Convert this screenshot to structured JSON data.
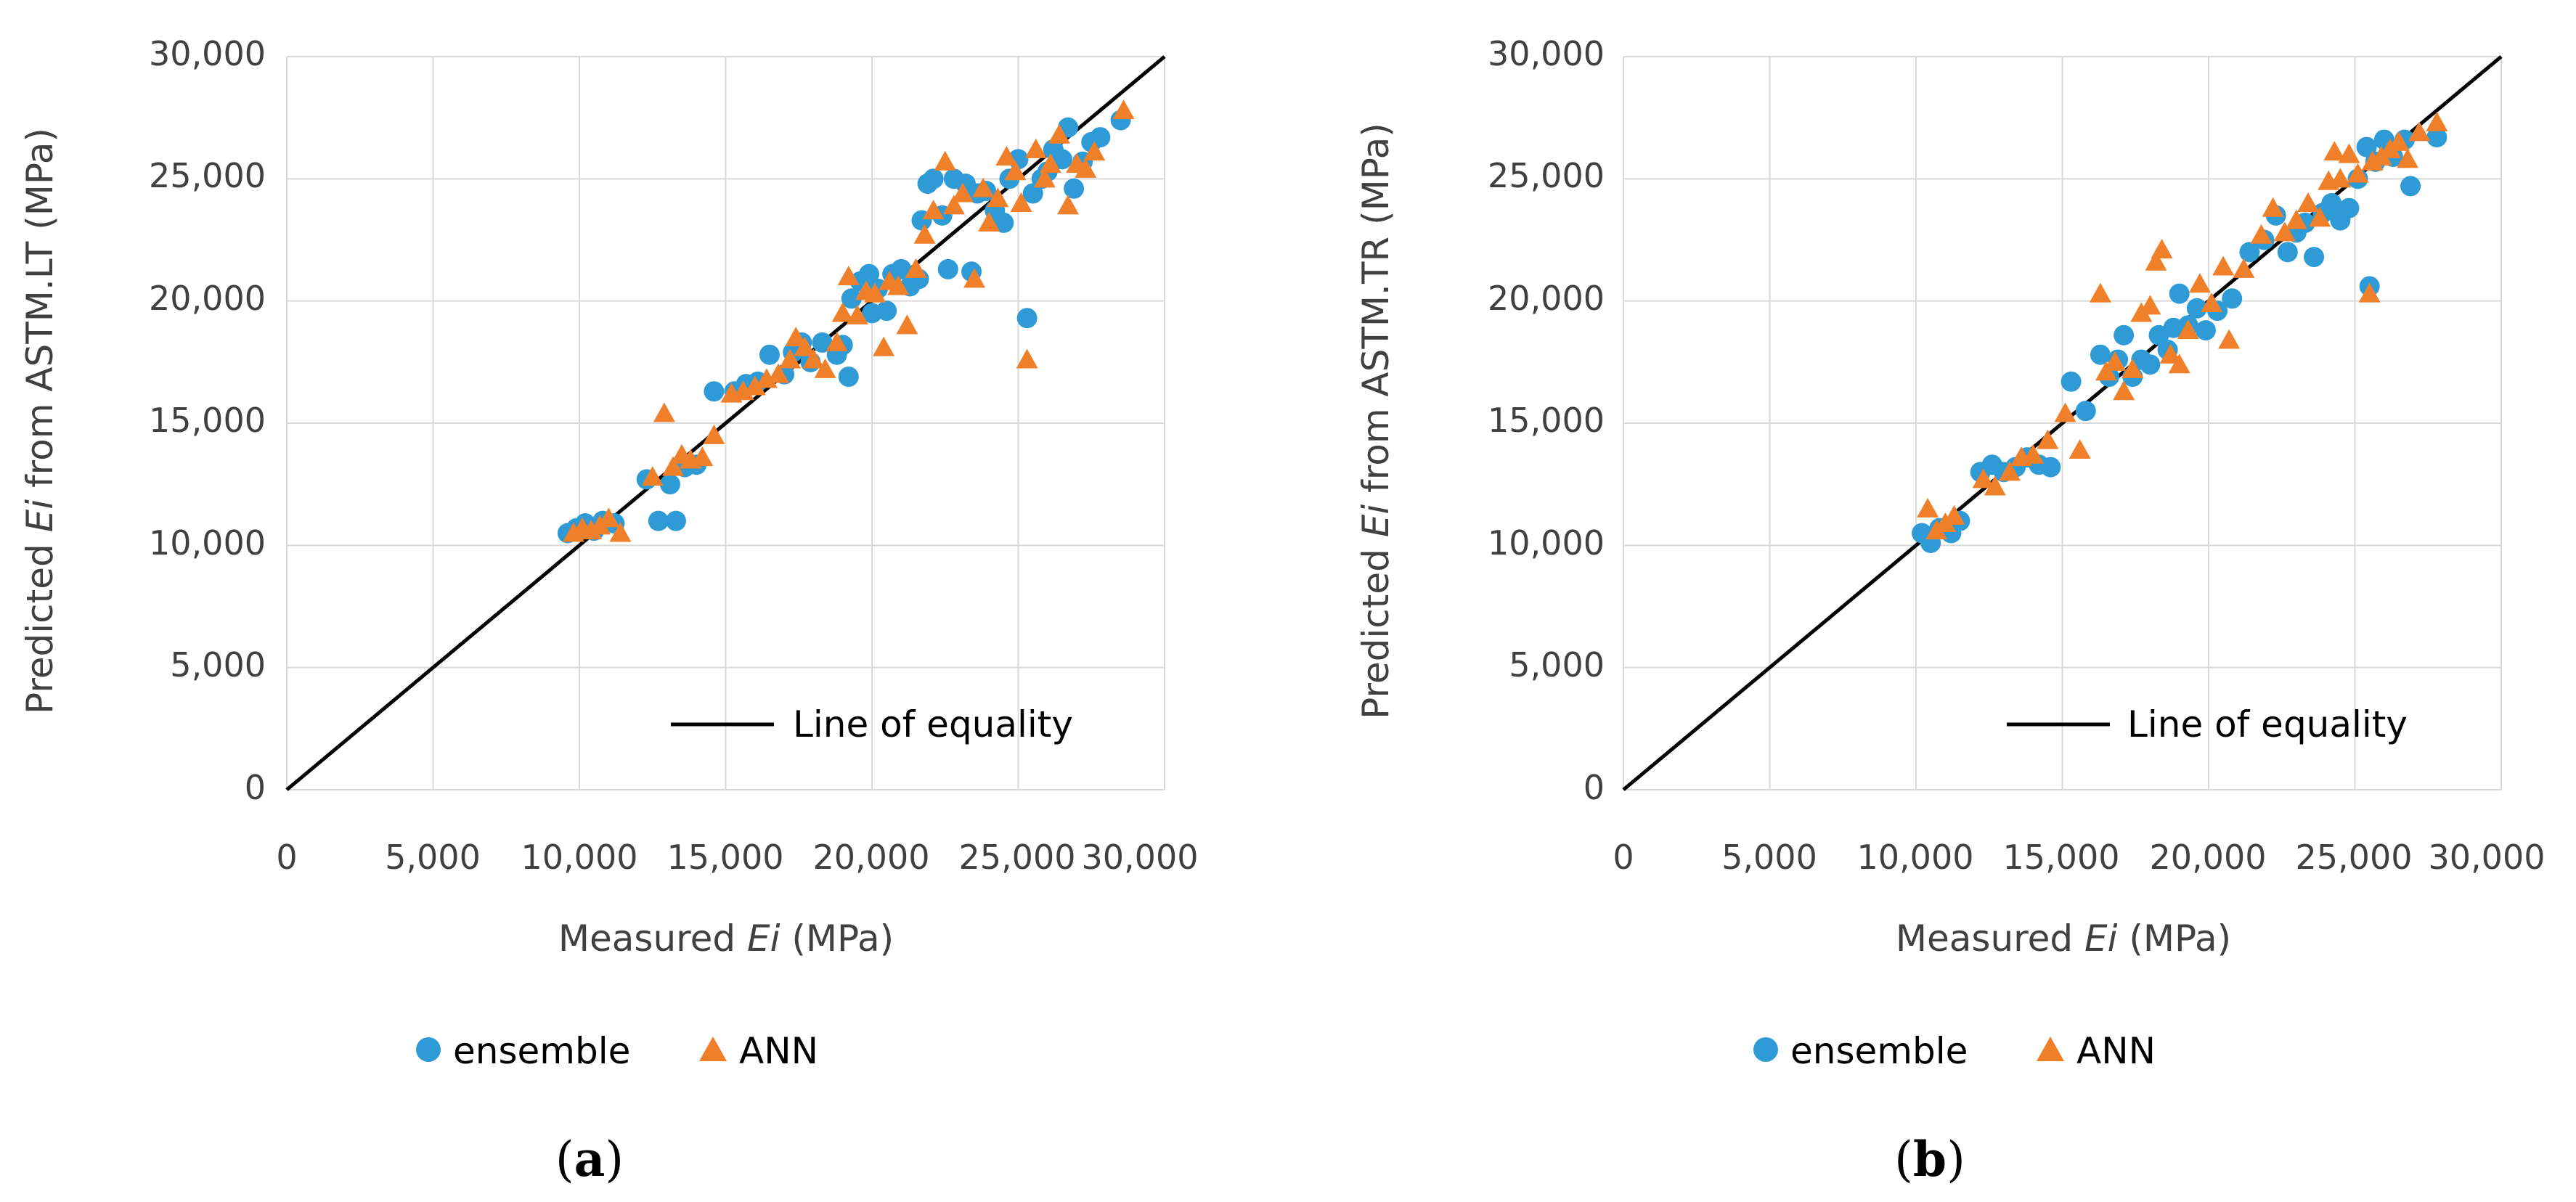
{
  "chart_data": [
    {
      "type": "scatter",
      "panel_label": {
        "open": "(",
        "letter": "a",
        "close": ")"
      },
      "xlabel": {
        "prefix": "Measured ",
        "italic": "Ei",
        "suffix": " (MPa)"
      },
      "ylabel": {
        "prefix": "Predicted ",
        "italic": "Ei",
        "suffix": " from ASTM.LT (MPa)"
      },
      "xlim": [
        0,
        30000
      ],
      "ylim": [
        0,
        30000
      ],
      "x_ticks": [
        "0",
        "5,000",
        "10,000",
        "15,000",
        "20,000",
        "25,000",
        "30,000"
      ],
      "y_ticks": [
        "0",
        "5,000",
        "10,000",
        "15,000",
        "20,000",
        "25,000",
        "30,000"
      ],
      "reference_line": {
        "name": "Line of equality",
        "from": [
          0,
          0
        ],
        "to": [
          30000,
          30000
        ]
      },
      "series": [
        {
          "name": "ensemble",
          "marker": "circle",
          "color": "#2E9BD6",
          "points": [
            [
              9600,
              10500
            ],
            [
              9900,
              10700
            ],
            [
              10200,
              10900
            ],
            [
              10500,
              10600
            ],
            [
              10800,
              11000
            ],
            [
              11200,
              10900
            ],
            [
              12300,
              12700
            ],
            [
              12700,
              11000
            ],
            [
              13100,
              12500
            ],
            [
              13300,
              11000
            ],
            [
              13600,
              13200
            ],
            [
              14000,
              13300
            ],
            [
              14600,
              16300
            ],
            [
              15300,
              16300
            ],
            [
              15700,
              16600
            ],
            [
              16100,
              16700
            ],
            [
              16500,
              17800
            ],
            [
              17000,
              17000
            ],
            [
              17300,
              17900
            ],
            [
              17600,
              18300
            ],
            [
              17900,
              17500
            ],
            [
              18300,
              18300
            ],
            [
              18800,
              17800
            ],
            [
              19000,
              18200
            ],
            [
              19200,
              16900
            ],
            [
              19300,
              20100
            ],
            [
              19600,
              20800
            ],
            [
              19900,
              21100
            ],
            [
              20000,
              19500
            ],
            [
              20200,
              20500
            ],
            [
              20500,
              19600
            ],
            [
              20700,
              21100
            ],
            [
              21000,
              21300
            ],
            [
              21300,
              20600
            ],
            [
              21600,
              20900
            ],
            [
              21700,
              23300
            ],
            [
              21900,
              24800
            ],
            [
              22100,
              25000
            ],
            [
              22400,
              23500
            ],
            [
              22600,
              21300
            ],
            [
              22800,
              25000
            ],
            [
              23200,
              24800
            ],
            [
              23400,
              21200
            ],
            [
              23600,
              24400
            ],
            [
              23900,
              24500
            ],
            [
              24200,
              23700
            ],
            [
              24500,
              23200
            ],
            [
              24700,
              25000
            ],
            [
              25000,
              25800
            ],
            [
              25300,
              19300
            ],
            [
              25500,
              24400
            ],
            [
              25800,
              25000
            ],
            [
              26000,
              25300
            ],
            [
              26200,
              26200
            ],
            [
              26500,
              25800
            ],
            [
              26700,
              27100
            ],
            [
              26900,
              24600
            ],
            [
              27200,
              25700
            ],
            [
              27500,
              26500
            ],
            [
              27800,
              26700
            ],
            [
              28500,
              27400
            ]
          ]
        },
        {
          "name": "ANN",
          "marker": "triangle",
          "color": "#F07F2A",
          "points": [
            [
              9800,
              10500
            ],
            [
              10100,
              10700
            ],
            [
              10400,
              10600
            ],
            [
              10700,
              10800
            ],
            [
              11000,
              11100
            ],
            [
              11400,
              10500
            ],
            [
              12500,
              12800
            ],
            [
              12900,
              15400
            ],
            [
              13200,
              13200
            ],
            [
              13500,
              13700
            ],
            [
              13800,
              13500
            ],
            [
              14200,
              13600
            ],
            [
              14600,
              14500
            ],
            [
              15200,
              16200
            ],
            [
              15600,
              16300
            ],
            [
              16000,
              16500
            ],
            [
              16400,
              16800
            ],
            [
              16800,
              17000
            ],
            [
              17200,
              17600
            ],
            [
              17400,
              18500
            ],
            [
              17700,
              18100
            ],
            [
              18000,
              17600
            ],
            [
              18400,
              17200
            ],
            [
              18800,
              18300
            ],
            [
              19000,
              19500
            ],
            [
              19200,
              21000
            ],
            [
              19500,
              19400
            ],
            [
              19800,
              20400
            ],
            [
              20100,
              20300
            ],
            [
              20400,
              18100
            ],
            [
              20600,
              20800
            ],
            [
              20900,
              20600
            ],
            [
              21200,
              19000
            ],
            [
              21500,
              21300
            ],
            [
              21800,
              22700
            ],
            [
              22100,
              23700
            ],
            [
              22500,
              25700
            ],
            [
              22800,
              23900
            ],
            [
              23100,
              24400
            ],
            [
              23500,
              20900
            ],
            [
              23800,
              24600
            ],
            [
              24000,
              23200
            ],
            [
              24300,
              24200
            ],
            [
              24600,
              25900
            ],
            [
              24900,
              25300
            ],
            [
              25100,
              24000
            ],
            [
              25300,
              17600
            ],
            [
              25600,
              26200
            ],
            [
              25900,
              25000
            ],
            [
              26100,
              25600
            ],
            [
              26400,
              26800
            ],
            [
              26700,
              23900
            ],
            [
              27000,
              25600
            ],
            [
              27300,
              25400
            ],
            [
              27600,
              26100
            ],
            [
              28600,
              27800
            ]
          ]
        }
      ]
    },
    {
      "type": "scatter",
      "panel_label": {
        "open": "(",
        "letter": "b",
        "close": ")"
      },
      "xlabel": {
        "prefix": "Measured ",
        "italic": "Ei",
        "suffix": " (MPa)"
      },
      "ylabel": {
        "prefix": "Predicted ",
        "italic": "Ei",
        "suffix": " from ASTM.TR (MPa)"
      },
      "xlim": [
        0,
        30000
      ],
      "ylim": [
        0,
        30000
      ],
      "x_ticks": [
        "0",
        "5,000",
        "10,000",
        "15,000",
        "20,000",
        "25,000",
        "30,000"
      ],
      "y_ticks": [
        "0",
        "5,000",
        "10,000",
        "15,000",
        "20,000",
        "25,000",
        "30,000"
      ],
      "reference_line": {
        "name": "Line of equality",
        "from": [
          0,
          0
        ],
        "to": [
          30000,
          30000
        ]
      },
      "series": [
        {
          "name": "ensemble",
          "marker": "circle",
          "color": "#2E9BD6",
          "points": [
            [
              10200,
              10500
            ],
            [
              10500,
              10100
            ],
            [
              10800,
              10700
            ],
            [
              11200,
              10500
            ],
            [
              11500,
              11000
            ],
            [
              12200,
              13000
            ],
            [
              12600,
              13300
            ],
            [
              13000,
              13000
            ],
            [
              13400,
              13200
            ],
            [
              13800,
              13600
            ],
            [
              14200,
              13300
            ],
            [
              14600,
              13200
            ],
            [
              15300,
              16700
            ],
            [
              15800,
              15500
            ],
            [
              16300,
              17800
            ],
            [
              16600,
              16900
            ],
            [
              16900,
              17600
            ],
            [
              17100,
              18600
            ],
            [
              17400,
              16900
            ],
            [
              17700,
              17600
            ],
            [
              18000,
              17400
            ],
            [
              18300,
              18600
            ],
            [
              18600,
              18000
            ],
            [
              18800,
              18900
            ],
            [
              19000,
              20300
            ],
            [
              19300,
              19000
            ],
            [
              19600,
              19700
            ],
            [
              19900,
              18800
            ],
            [
              20300,
              19600
            ],
            [
              20800,
              20100
            ],
            [
              21400,
              22000
            ],
            [
              21900,
              22500
            ],
            [
              22300,
              23500
            ],
            [
              22700,
              22000
            ],
            [
              23000,
              22800
            ],
            [
              23300,
              23200
            ],
            [
              23600,
              21800
            ],
            [
              23900,
              23600
            ],
            [
              24200,
              24000
            ],
            [
              24500,
              23300
            ],
            [
              24800,
              23800
            ],
            [
              25100,
              25000
            ],
            [
              25400,
              26300
            ],
            [
              25500,
              20600
            ],
            [
              25700,
              25700
            ],
            [
              26000,
              26600
            ],
            [
              26300,
              25900
            ],
            [
              26700,
              26600
            ],
            [
              26900,
              24700
            ],
            [
              27800,
              26700
            ]
          ]
        },
        {
          "name": "ANN",
          "marker": "triangle",
          "color": "#F07F2A",
          "points": [
            [
              10400,
              11500
            ],
            [
              10700,
              10600
            ],
            [
              11000,
              10900
            ],
            [
              11300,
              11200
            ],
            [
              12300,
              12700
            ],
            [
              12700,
              12400
            ],
            [
              13200,
              13000
            ],
            [
              13600,
              13600
            ],
            [
              14000,
              13700
            ],
            [
              14500,
              14300
            ],
            [
              15100,
              15400
            ],
            [
              15600,
              13900
            ],
            [
              16300,
              20300
            ],
            [
              16500,
              17100
            ],
            [
              16800,
              17500
            ],
            [
              17100,
              16300
            ],
            [
              17400,
              17200
            ],
            [
              17700,
              19500
            ],
            [
              18000,
              19800
            ],
            [
              18200,
              21600
            ],
            [
              18400,
              22100
            ],
            [
              18700,
              17800
            ],
            [
              19000,
              17400
            ],
            [
              19300,
              18800
            ],
            [
              19700,
              20700
            ],
            [
              20100,
              19900
            ],
            [
              20500,
              21400
            ],
            [
              20700,
              18400
            ],
            [
              21200,
              21300
            ],
            [
              21800,
              22700
            ],
            [
              22200,
              23800
            ],
            [
              22600,
              22800
            ],
            [
              23000,
              23300
            ],
            [
              23400,
              24000
            ],
            [
              23800,
              23400
            ],
            [
              24100,
              24900
            ],
            [
              24300,
              26100
            ],
            [
              24500,
              25000
            ],
            [
              24800,
              26000
            ],
            [
              25100,
              25200
            ],
            [
              25500,
              20300
            ],
            [
              25600,
              25700
            ],
            [
              25900,
              25900
            ],
            [
              26200,
              26200
            ],
            [
              26500,
              26500
            ],
            [
              26800,
              25800
            ],
            [
              27200,
              26900
            ],
            [
              27800,
              27300
            ]
          ]
        }
      ]
    }
  ]
}
